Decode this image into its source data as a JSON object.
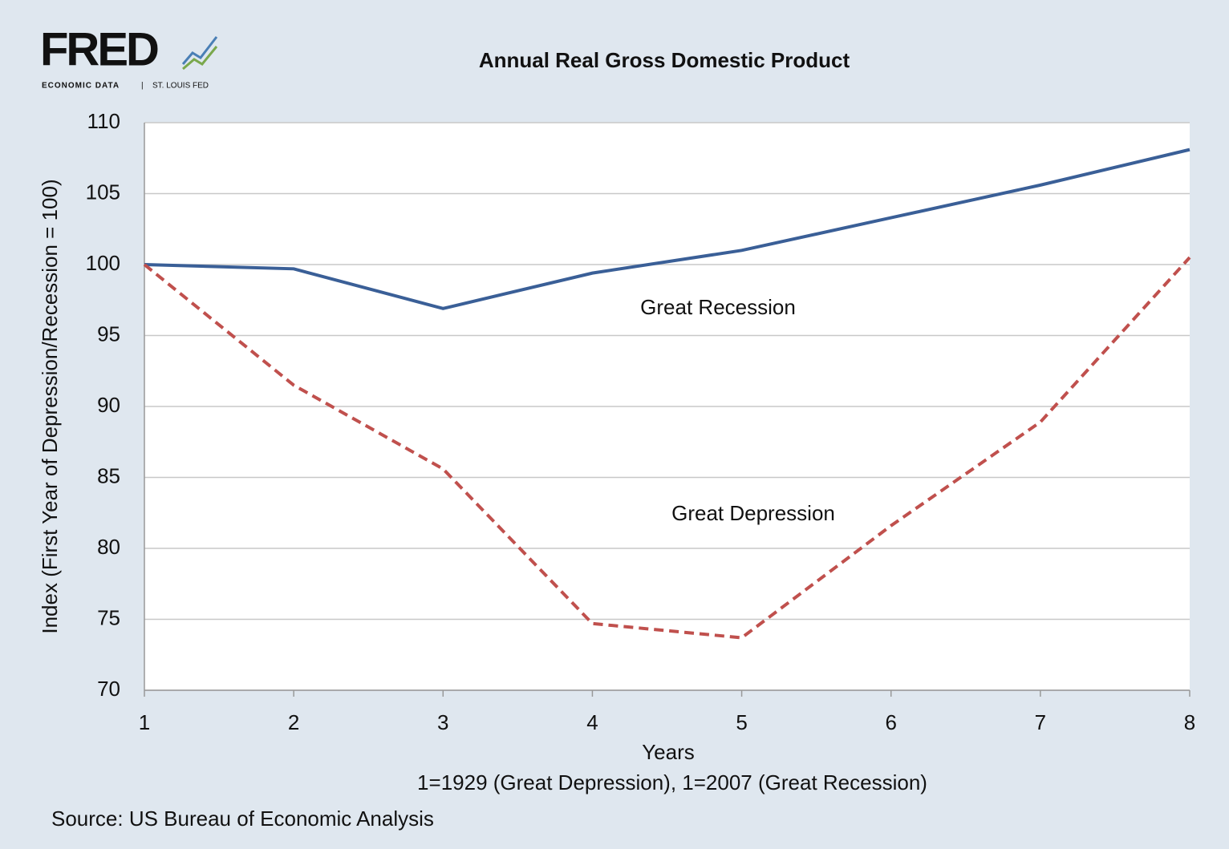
{
  "logo": {
    "name": "FRED",
    "left": "ECONOMIC DATA",
    "right": "ST. LOUIS FED"
  },
  "chart_data": {
    "type": "line",
    "title": "Annual Real Gross Domestic Product",
    "x_label": "Years",
    "x_sublabel": "1=1929 (Great Depression), 1=2007 (Great Recession)",
    "y_label": "Index (First Year of Depression/Recession = 100)",
    "source": "Source: US Bureau of Economic Analysis",
    "x": [
      1,
      2,
      3,
      4,
      5,
      6,
      7,
      8
    ],
    "series": [
      {
        "name": "Great Recession",
        "color": "#3a5f97",
        "dash": false,
        "values": [
          100,
          99.7,
          96.9,
          99.4,
          101.0,
          103.3,
          105.6,
          108.1
        ]
      },
      {
        "name": "Great Depression",
        "color": "#c0504d",
        "dash": true,
        "values": [
          100,
          91.5,
          85.6,
          74.7,
          73.7,
          81.6,
          88.9,
          100.5
        ]
      }
    ],
    "xlim": [
      1,
      8
    ],
    "xticks": [
      1,
      2,
      3,
      4,
      5,
      6,
      7,
      8
    ],
    "ylim": [
      70,
      110
    ],
    "yticks": [
      70,
      75,
      80,
      85,
      90,
      95,
      100,
      105,
      110
    ],
    "grid": true
  }
}
